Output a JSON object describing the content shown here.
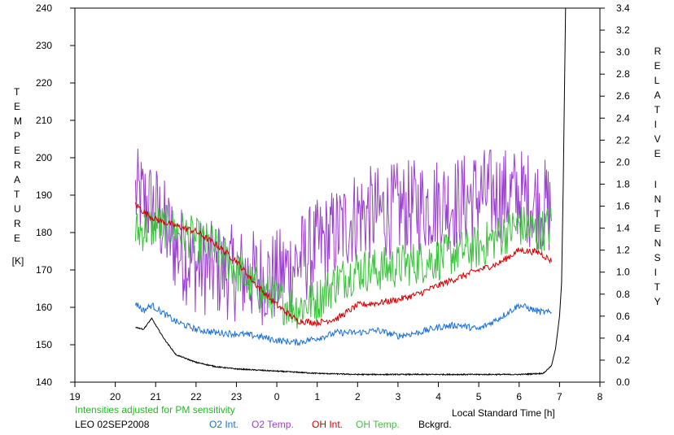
{
  "chart_data": {
    "type": "line",
    "station": "LEO 02SEP2008",
    "note": "Intensities adjusted for PM sensitivity",
    "xlabel": "Local Standard Time [h]",
    "ylabel_left": "TEMPERATURE",
    "ylabel_left_unit": "[K]",
    "ylabel_right": "RELATIVE  INTENSITY",
    "x_ticks": [
      "19",
      "20",
      "21",
      "22",
      "23",
      "0",
      "1",
      "2",
      "3",
      "4",
      "5",
      "6",
      "7",
      "8"
    ],
    "x_range_hours": [
      19,
      32
    ],
    "y_left_range": [
      140,
      240
    ],
    "y_left_ticks": [
      "140",
      "150",
      "160",
      "170",
      "180",
      "190",
      "200",
      "210",
      "220",
      "230",
      "240"
    ],
    "y_right_range": [
      0,
      3.4
    ],
    "y_right_ticks": [
      "0.0",
      "0.2",
      "0.4",
      "0.6",
      "0.8",
      "1.0",
      "1.2",
      "1.4",
      "1.6",
      "1.8",
      "2.0",
      "2.2",
      "2.4",
      "2.6",
      "2.8",
      "3.0",
      "3.2",
      "3.4"
    ],
    "legend": [
      "O2 Int.",
      "O2 Temp.",
      "OH Int.",
      "OH Temp.",
      "Bckgrd."
    ],
    "colors": {
      "O2 Int.": "#1a6fd6",
      "O2 Temp.": "#9a3fd0",
      "OH Int.": "#d00000",
      "OH Temp.": "#3cc23c",
      "Bckgrd.": "#000000",
      "note": "#22bb22"
    },
    "series": [
      {
        "name": "O2 Temp.",
        "axis": "left",
        "noise": 13,
        "x": [
          20.5,
          21.0,
          21.5,
          22.0,
          22.5,
          23.0,
          23.5,
          24.0,
          24.5,
          25.0,
          25.5,
          26.0,
          26.5,
          27.0,
          27.5,
          28.0,
          28.5,
          29.0,
          29.5,
          30.0,
          30.5,
          30.8
        ],
        "y": [
          190,
          186,
          176,
          171,
          170,
          169,
          168,
          168,
          172,
          176,
          180,
          185,
          185,
          186,
          187,
          188,
          188,
          190,
          190,
          190,
          188,
          186
        ]
      },
      {
        "name": "OH Temp.",
        "axis": "left",
        "noise": 6,
        "x": [
          20.5,
          21.0,
          21.5,
          22.0,
          22.5,
          23.0,
          23.5,
          24.0,
          24.5,
          25.0,
          25.5,
          26.0,
          26.5,
          27.0,
          27.5,
          28.0,
          28.5,
          29.0,
          29.5,
          30.0,
          30.5,
          30.8
        ],
        "y": [
          180,
          182,
          181,
          178,
          176,
          170,
          165,
          162,
          160,
          162,
          167,
          170,
          170,
          171,
          172,
          173,
          175,
          176,
          179,
          182,
          180,
          182
        ]
      },
      {
        "name": "OH Int.",
        "axis": "right",
        "noise": 0.03,
        "x": [
          20.5,
          20.7,
          21.0,
          21.5,
          22.0,
          22.5,
          23.0,
          23.5,
          24.0,
          24.5,
          25.0,
          25.5,
          26.0,
          26.5,
          27.0,
          27.5,
          28.0,
          28.5,
          29.0,
          29.5,
          30.0,
          30.5,
          30.8
        ],
        "y": [
          1.62,
          1.55,
          1.48,
          1.42,
          1.37,
          1.25,
          1.1,
          0.88,
          0.7,
          0.56,
          0.54,
          0.58,
          0.7,
          0.72,
          0.75,
          0.8,
          0.88,
          0.95,
          1.02,
          1.08,
          1.2,
          1.18,
          1.1
        ]
      },
      {
        "name": "O2 Int.",
        "axis": "right",
        "noise": 0.03,
        "x": [
          20.5,
          20.7,
          20.9,
          21.5,
          22.0,
          22.5,
          23.0,
          23.5,
          24.0,
          24.5,
          25.0,
          25.5,
          26.0,
          26.5,
          27.0,
          27.5,
          28.0,
          28.5,
          29.0,
          29.5,
          30.0,
          30.5,
          30.8
        ],
        "y": [
          0.72,
          0.65,
          0.7,
          0.55,
          0.48,
          0.45,
          0.44,
          0.42,
          0.38,
          0.36,
          0.4,
          0.45,
          0.45,
          0.47,
          0.42,
          0.45,
          0.5,
          0.52,
          0.48,
          0.58,
          0.7,
          0.64,
          0.63
        ]
      },
      {
        "name": "Bckgrd.",
        "axis": "right",
        "noise": 0.005,
        "x": [
          20.5,
          20.7,
          20.9,
          21.2,
          21.5,
          22.0,
          22.5,
          23.0,
          24.0,
          25.0,
          26.0,
          27.0,
          28.0,
          29.0,
          29.5,
          30.0,
          30.6,
          30.8,
          30.9,
          31.0,
          31.05,
          31.1,
          31.15
        ],
        "y": [
          0.5,
          0.48,
          0.58,
          0.4,
          0.25,
          0.18,
          0.14,
          0.12,
          0.1,
          0.08,
          0.07,
          0.07,
          0.07,
          0.07,
          0.07,
          0.07,
          0.08,
          0.15,
          0.3,
          0.6,
          0.9,
          2.0,
          3.4
        ]
      }
    ]
  }
}
